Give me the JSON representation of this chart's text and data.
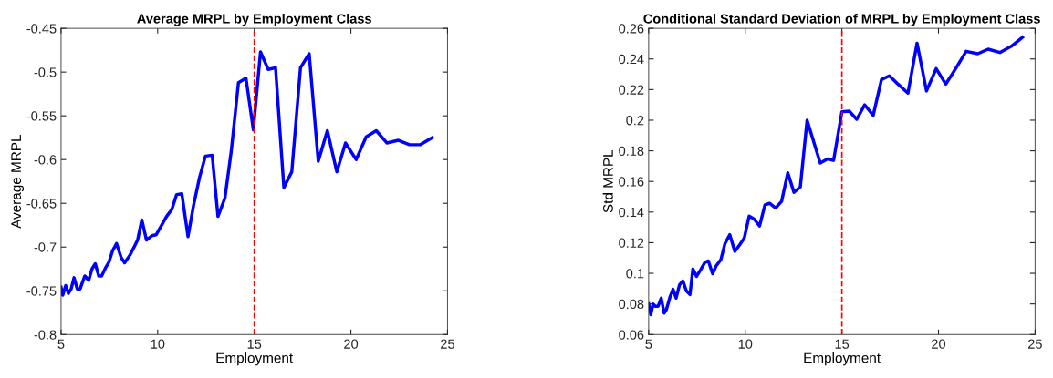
{
  "chart_data": [
    {
      "type": "line",
      "title": "Average MRPL by Employment Class",
      "xlabel": "Employment",
      "ylabel": "Average MRPL",
      "xlim": [
        5,
        25
      ],
      "xticks": [
        5,
        10,
        15,
        20,
        25
      ],
      "ylim": [
        -0.8,
        -0.45
      ],
      "yticks": [
        -0.8,
        -0.75,
        -0.7,
        -0.65,
        -0.6,
        -0.55,
        -0.5,
        -0.45
      ],
      "grid": false,
      "marker": "none",
      "line_style": "solid",
      "ref_lines": [
        {
          "axis": "x",
          "value": 15,
          "color": "#ff0000",
          "line_style": "dashed"
        }
      ],
      "series": [
        {
          "color": "#0000ff",
          "x": [
            5.0,
            5.09,
            5.24,
            5.38,
            5.52,
            5.67,
            5.84,
            5.98,
            6.23,
            6.43,
            6.6,
            6.77,
            6.95,
            7.1,
            7.32,
            7.48,
            7.67,
            7.87,
            8.11,
            8.29,
            8.57,
            8.78,
            8.96,
            9.18,
            9.42,
            9.7,
            9.92,
            10.18,
            10.46,
            10.73,
            10.98,
            11.25,
            11.57,
            11.86,
            12.16,
            12.47,
            12.82,
            13.12,
            13.48,
            13.81,
            14.18,
            14.57,
            14.95,
            15.32,
            15.72,
            16.1,
            16.53,
            16.94,
            17.39,
            17.84,
            18.31,
            18.78,
            19.27,
            19.72,
            20.27,
            20.79,
            21.31,
            21.86,
            22.46,
            23.03,
            23.6,
            24.21
          ],
          "values": [
            -0.746,
            -0.755,
            -0.744,
            -0.753,
            -0.748,
            -0.735,
            -0.748,
            -0.748,
            -0.733,
            -0.738,
            -0.725,
            -0.719,
            -0.733,
            -0.733,
            -0.723,
            -0.717,
            -0.704,
            -0.696,
            -0.712,
            -0.718,
            -0.709,
            -0.7,
            -0.692,
            -0.669,
            -0.692,
            -0.687,
            -0.686,
            -0.676,
            -0.665,
            -0.657,
            -0.64,
            -0.639,
            -0.688,
            -0.652,
            -0.621,
            -0.596,
            -0.595,
            -0.665,
            -0.644,
            -0.59,
            -0.512,
            -0.507,
            -0.566,
            -0.477,
            -0.497,
            -0.495,
            -0.632,
            -0.614,
            -0.495,
            -0.479,
            -0.602,
            -0.567,
            -0.614,
            -0.581,
            -0.6,
            -0.574,
            -0.567,
            -0.581,
            -0.578,
            -0.583,
            -0.583,
            -0.575
          ]
        }
      ]
    },
    {
      "type": "line",
      "title": "Conditional Standard Deviation of MRPL by Employment Class",
      "xlabel": "Employment",
      "ylabel": "Std MRPL",
      "xlim": [
        5,
        25
      ],
      "xticks": [
        5,
        10,
        15,
        20,
        25
      ],
      "ylim": [
        0.06,
        0.26
      ],
      "yticks": [
        0.06,
        0.08,
        0.1,
        0.12,
        0.14,
        0.16,
        0.18,
        0.2,
        0.22,
        0.24,
        0.26
      ],
      "grid": false,
      "marker": "none",
      "line_style": "solid",
      "ref_lines": [
        {
          "axis": "x",
          "value": 15,
          "color": "#ff0000",
          "line_style": "dashed"
        }
      ],
      "series": [
        {
          "color": "#0000ff",
          "x": [
            5.0,
            5.11,
            5.23,
            5.35,
            5.49,
            5.65,
            5.8,
            5.92,
            6.11,
            6.26,
            6.42,
            6.6,
            6.77,
            6.95,
            7.14,
            7.29,
            7.48,
            7.69,
            7.91,
            8.09,
            8.31,
            8.49,
            8.74,
            8.95,
            9.2,
            9.46,
            9.72,
            9.95,
            10.2,
            10.46,
            10.74,
            11.02,
            11.26,
            11.57,
            11.88,
            12.2,
            12.52,
            12.85,
            13.2,
            13.54,
            13.88,
            14.26,
            14.57,
            15.0,
            15.38,
            15.77,
            16.18,
            16.62,
            17.05,
            17.46,
            17.92,
            18.42,
            18.89,
            19.38,
            19.88,
            20.38,
            20.89,
            21.43,
            22.03,
            22.57,
            23.18,
            23.77,
            24.35
          ],
          "values": [
            0.08,
            0.073,
            0.08,
            0.0785,
            0.0785,
            0.0838,
            0.074,
            0.0764,
            0.0847,
            0.0896,
            0.0838,
            0.0925,
            0.095,
            0.0886,
            0.0861,
            0.1029,
            0.098,
            0.1023,
            0.1071,
            0.1081,
            0.0997,
            0.1048,
            0.109,
            0.1194,
            0.1252,
            0.1143,
            0.1188,
            0.1231,
            0.1373,
            0.1354,
            0.1309,
            0.1447,
            0.1457,
            0.1426,
            0.147,
            0.1656,
            0.1529,
            0.1564,
            0.2,
            0.186,
            0.172,
            0.1747,
            0.1737,
            0.2055,
            0.2059,
            0.2006,
            0.21,
            0.2031,
            0.2265,
            0.229,
            0.2234,
            0.2177,
            0.2503,
            0.2191,
            0.2337,
            0.2236,
            0.2337,
            0.245,
            0.2434,
            0.2464,
            0.2442,
            0.2483,
            0.2542
          ]
        }
      ]
    }
  ]
}
